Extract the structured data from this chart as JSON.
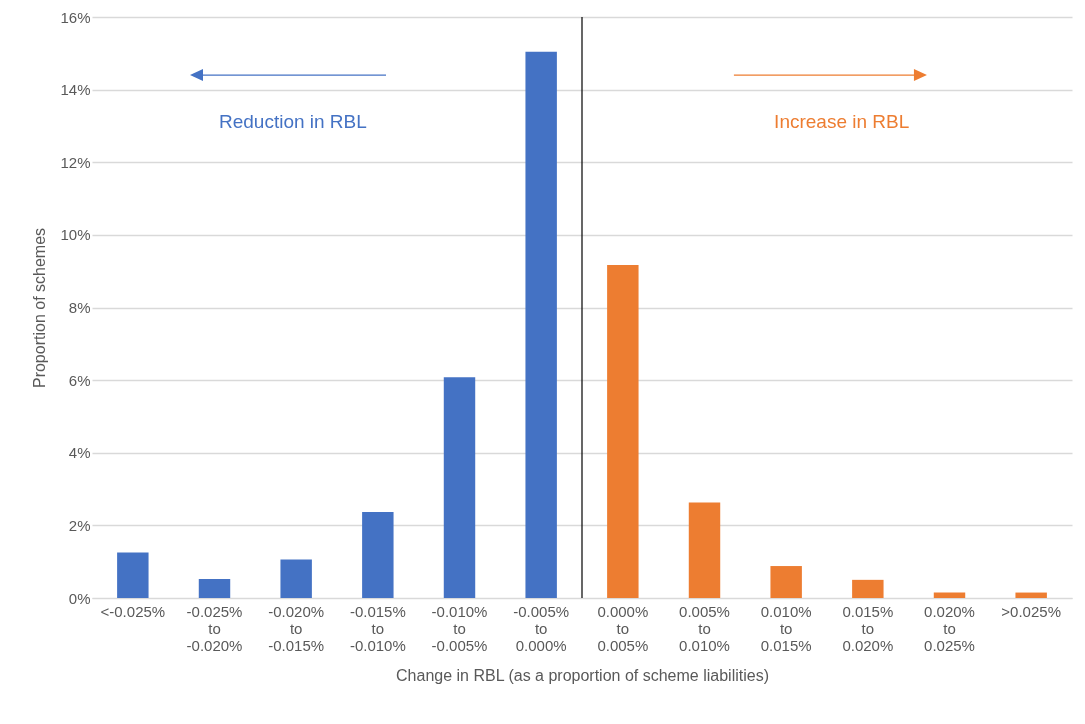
{
  "chart_data": {
    "type": "bar",
    "xlabel": "Change in RBL (as a proportion of scheme liabilities)",
    "ylabel": "Proportion of schemes",
    "categories": [
      "<-0.025%",
      "-0.025% to -0.020%",
      "-0.020% to -0.015%",
      "-0.015% to -0.010%",
      "-0.010% to -0.005%",
      "-0.005% to 0.000%",
      "0.000% to 0.005%",
      "0.005% to 0.010%",
      "0.010% to 0.015%",
      "0.015% to 0.020%",
      "0.020% to 0.025%",
      ">0.025%"
    ],
    "values": [
      1.25,
      0.52,
      1.06,
      2.37,
      6.08,
      15.04,
      9.17,
      2.63,
      0.88,
      0.5,
      0.15,
      0.15
    ],
    "colors": [
      "#4472c4",
      "#4472c4",
      "#4472c4",
      "#4472c4",
      "#4472c4",
      "#4472c4",
      "#ed7d31",
      "#ed7d31",
      "#ed7d31",
      "#ed7d31",
      "#ed7d31",
      "#ed7d31"
    ],
    "ylim": [
      0,
      16
    ],
    "yticks": [
      {
        "value": 0,
        "label": "0%"
      },
      {
        "value": 2,
        "label": "2%"
      },
      {
        "value": 4,
        "label": "4%"
      },
      {
        "value": 6,
        "label": "6%"
      },
      {
        "value": 8,
        "label": "8%"
      },
      {
        "value": 10,
        "label": "10%"
      },
      {
        "value": 12,
        "label": "12%"
      },
      {
        "value": 14,
        "label": "14%"
      },
      {
        "value": 16,
        "label": "16%"
      }
    ],
    "grid": "y",
    "ref_lines": [
      {
        "axis": "x",
        "value": "0.000% to 0.005%",
        "color": "#000000"
      }
    ],
    "annotations": [
      "Reduction in RBL",
      "Increase in RBL"
    ]
  }
}
